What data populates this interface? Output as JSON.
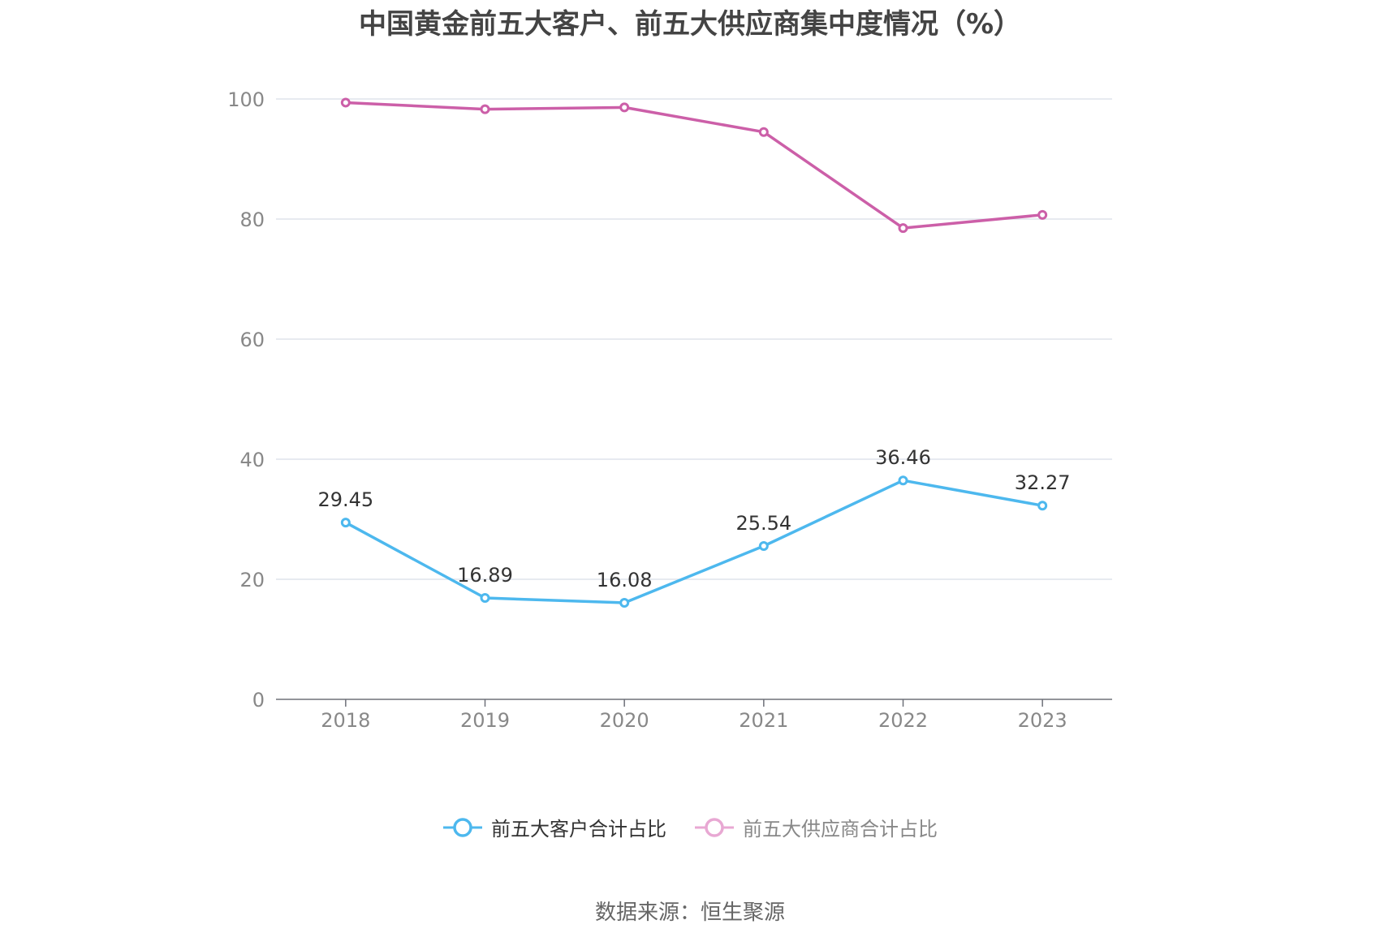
{
  "chart_data": {
    "type": "line",
    "title": "中国黄金前五大客户、前五大供应商集中度情况（%）",
    "categories": [
      "2018",
      "2019",
      "2020",
      "2021",
      "2022",
      "2023"
    ],
    "series": [
      {
        "name": "前五大客户合计占比",
        "values": [
          29.45,
          16.89,
          16.08,
          25.54,
          36.46,
          32.27
        ],
        "color": "#4db8ee",
        "show_labels": true,
        "legend_active": true
      },
      {
        "name": "前五大供应商合计占比",
        "values": [
          99.4,
          98.3,
          98.6,
          94.5,
          78.5,
          80.7
        ],
        "color": "#cc5fa8",
        "show_labels": false,
        "legend_active": false
      }
    ],
    "ylim": [
      0,
      100
    ],
    "yticks": [
      0,
      20,
      40,
      60,
      80,
      100
    ],
    "xlabel": "",
    "ylabel": "",
    "grid": true,
    "legend_position": "bottom"
  },
  "legend": {
    "inactive_color": "#e8a8d3",
    "inactive_text_color": "#888888"
  },
  "source": "数据来源：恒生聚源"
}
